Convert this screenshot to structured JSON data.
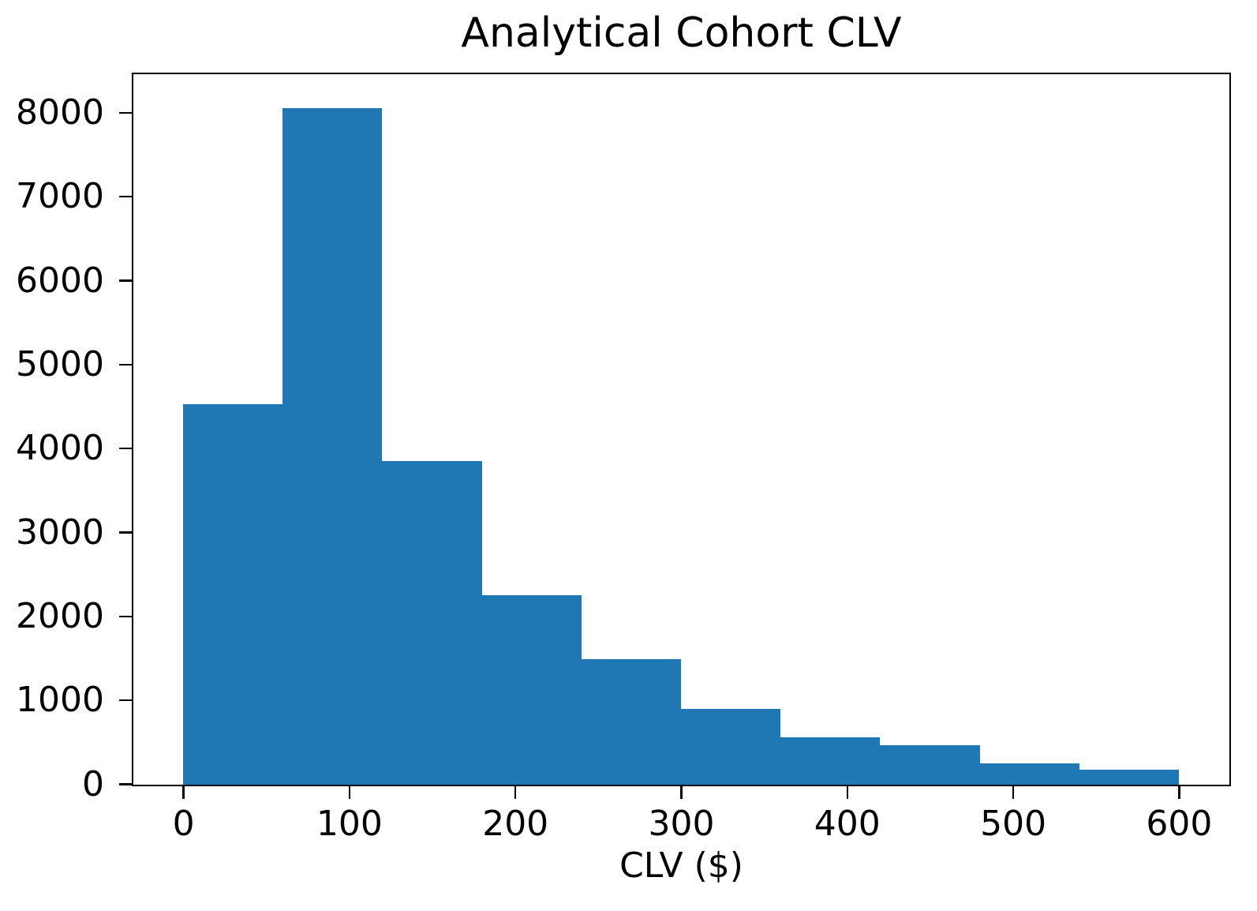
{
  "chart_data": {
    "type": "bar",
    "chart_kind": "histogram",
    "title": "Analytical Cohort CLV",
    "xlabel": "CLV ($)",
    "ylabel": "",
    "bin_edges": [
      0,
      60,
      120,
      180,
      240,
      300,
      360,
      420,
      480,
      540,
      600
    ],
    "counts": [
      4530,
      8060,
      3860,
      2260,
      1500,
      900,
      560,
      470,
      250,
      180
    ],
    "x_ticks": [
      0,
      100,
      200,
      300,
      400,
      500,
      600
    ],
    "y_ticks": [
      0,
      1000,
      2000,
      3000,
      4000,
      5000,
      6000,
      7000,
      8000
    ],
    "xlim": [
      -30,
      630
    ],
    "ylim": [
      0,
      8455
    ],
    "bar_color": "#1f77b4",
    "axis_color": "#000000",
    "background_color": "#ffffff",
    "grid": false,
    "legend": null
  }
}
